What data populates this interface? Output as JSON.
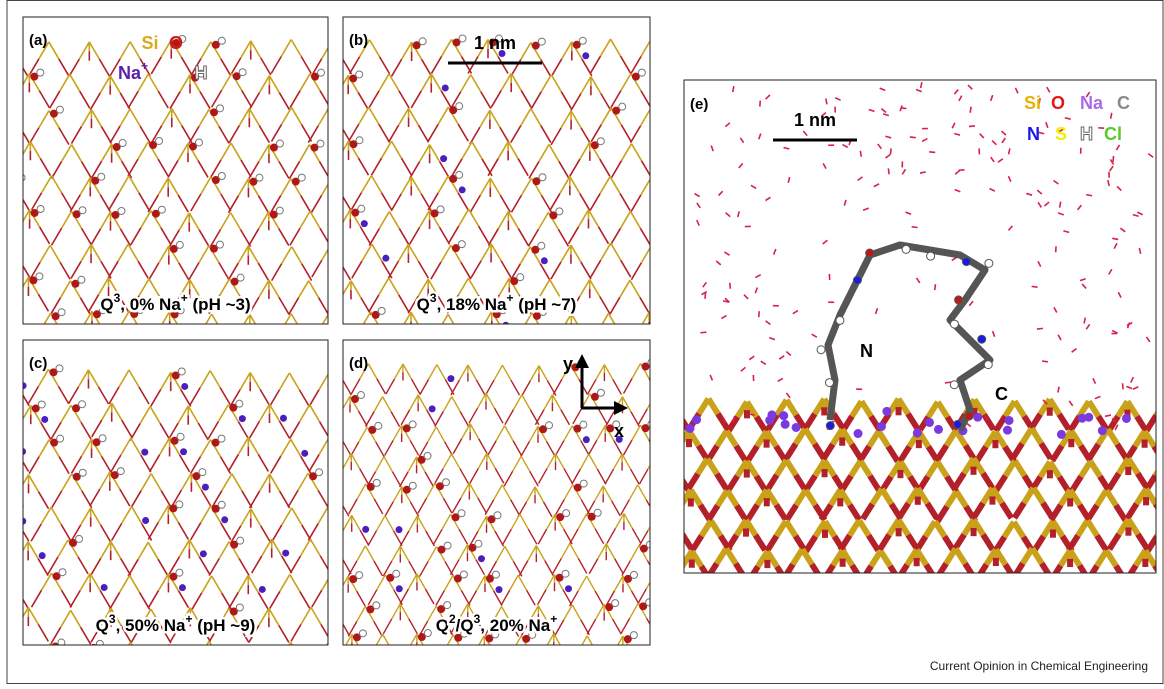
{
  "panels": [
    {
      "label": "(a)",
      "caption": [
        {
          "text": "Q"
        },
        {
          "text": "3",
          "sup": true
        },
        {
          "text": ", 0% Na"
        },
        {
          "text": "+",
          "sup": true
        },
        {
          "text": " (pH ~3)"
        }
      ],
      "legend": [
        {
          "text": "Si",
          "color": "#d9a81c"
        },
        {
          "text": "O",
          "color": "#d11a1a"
        },
        {
          "text": "Na",
          "sup": "+",
          "color": "#5a1fb0"
        },
        {
          "text": "H",
          "color": "#ffffff",
          "outline": true
        }
      ]
    },
    {
      "label": "(b)",
      "caption": [
        {
          "text": "Q"
        },
        {
          "text": "3",
          "sup": true
        },
        {
          "text": ", 18% Na"
        },
        {
          "text": "+",
          "sup": true
        },
        {
          "text": " (pH ~7)"
        }
      ],
      "scale_bar": "1 nm"
    },
    {
      "label": "(c)",
      "caption": [
        {
          "text": "Q"
        },
        {
          "text": "3",
          "sup": true
        },
        {
          "text": ", 50% Na"
        },
        {
          "text": "+",
          "sup": true
        },
        {
          "text": " (pH ~9)"
        }
      ]
    },
    {
      "label": "(d)",
      "caption": [
        {
          "text": "Q"
        },
        {
          "text": "2",
          "sup": true
        },
        {
          "text": "/Q"
        },
        {
          "text": "3",
          "sup": true
        },
        {
          "text": ", 20% Na"
        },
        {
          "text": "+",
          "sup": true
        }
      ],
      "axes": {
        "y": "y",
        "x": "x"
      }
    },
    {
      "label": "(e)",
      "scale_bar": "1 nm",
      "termini": {
        "n": "N",
        "c": "C"
      },
      "legend": [
        {
          "text": "Si",
          "color": "#e6b400"
        },
        {
          "text": "O",
          "color": "#e01818"
        },
        {
          "text": "Na",
          "color": "#a86ae8"
        },
        {
          "text": "C",
          "color": "#8a8a8a"
        },
        {
          "text": "N",
          "color": "#1818e8"
        },
        {
          "text": "S",
          "color": "#f0f000"
        },
        {
          "text": "H",
          "color": "#ffffff",
          "outline": true
        },
        {
          "text": "Cl",
          "color": "#59c92e"
        }
      ]
    }
  ],
  "footer": "Current Opinion in Chemical Engineering"
}
